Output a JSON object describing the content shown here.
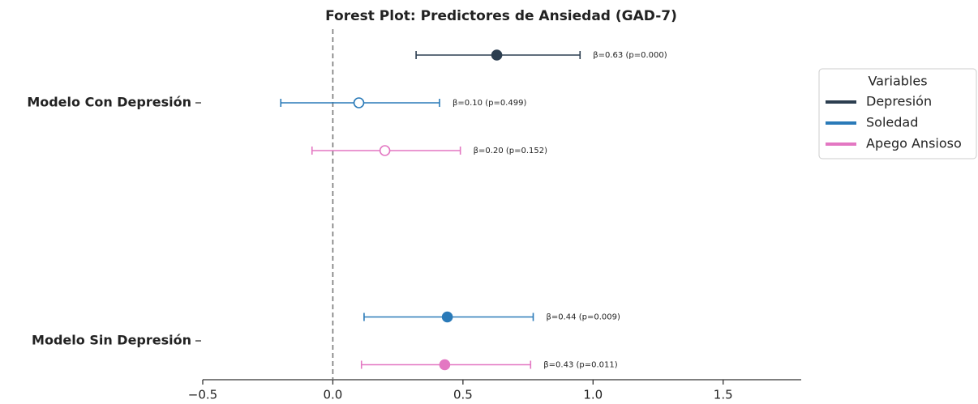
{
  "chart_data": {
    "type": "forest",
    "title": "Forest Plot: Predictores de Ansiedad (GAD-7)",
    "categories": [
      "Modelo Con Depresión",
      "Modelo Sin Depresión"
    ],
    "series": [
      {
        "name": "Depresión",
        "color": "#2c3e50",
        "values": [
          0.63,
          null
        ],
        "lower": [
          0.32,
          null
        ],
        "upper": [
          0.95,
          null
        ],
        "filled": [
          true,
          null
        ],
        "value_labels": [
          "β=0.63 (p=0.000)",
          null
        ]
      },
      {
        "name": "Soledad",
        "color": "#2a7ab8",
        "values": [
          0.1,
          0.44
        ],
        "lower": [
          -0.2,
          0.12
        ],
        "upper": [
          0.41,
          0.77
        ],
        "filled": [
          false,
          true
        ],
        "value_labels": [
          "β=0.10 (p=0.499)",
          "β=0.44 (p=0.009)"
        ]
      },
      {
        "name": "Apego Ansioso",
        "color": "#e377c2",
        "values": [
          0.2,
          0.43
        ],
        "lower": [
          -0.08,
          0.11
        ],
        "upper": [
          0.49,
          0.76
        ],
        "filled": [
          false,
          true
        ],
        "value_labels": [
          "β=0.20 (p=0.152)",
          "β=0.43 (p=0.011)"
        ]
      }
    ],
    "xlim": [
      -0.5,
      1.8
    ],
    "xticks": [
      {
        "value": -0.5,
        "label": "−0.5"
      },
      {
        "value": 0,
        "label": "0.0"
      },
      0.5,
      {
        "value": 1,
        "label": "1.0"
      },
      1.5
    ],
    "reference_line": 0,
    "legend_title": "Variables",
    "legend": "upper right"
  }
}
